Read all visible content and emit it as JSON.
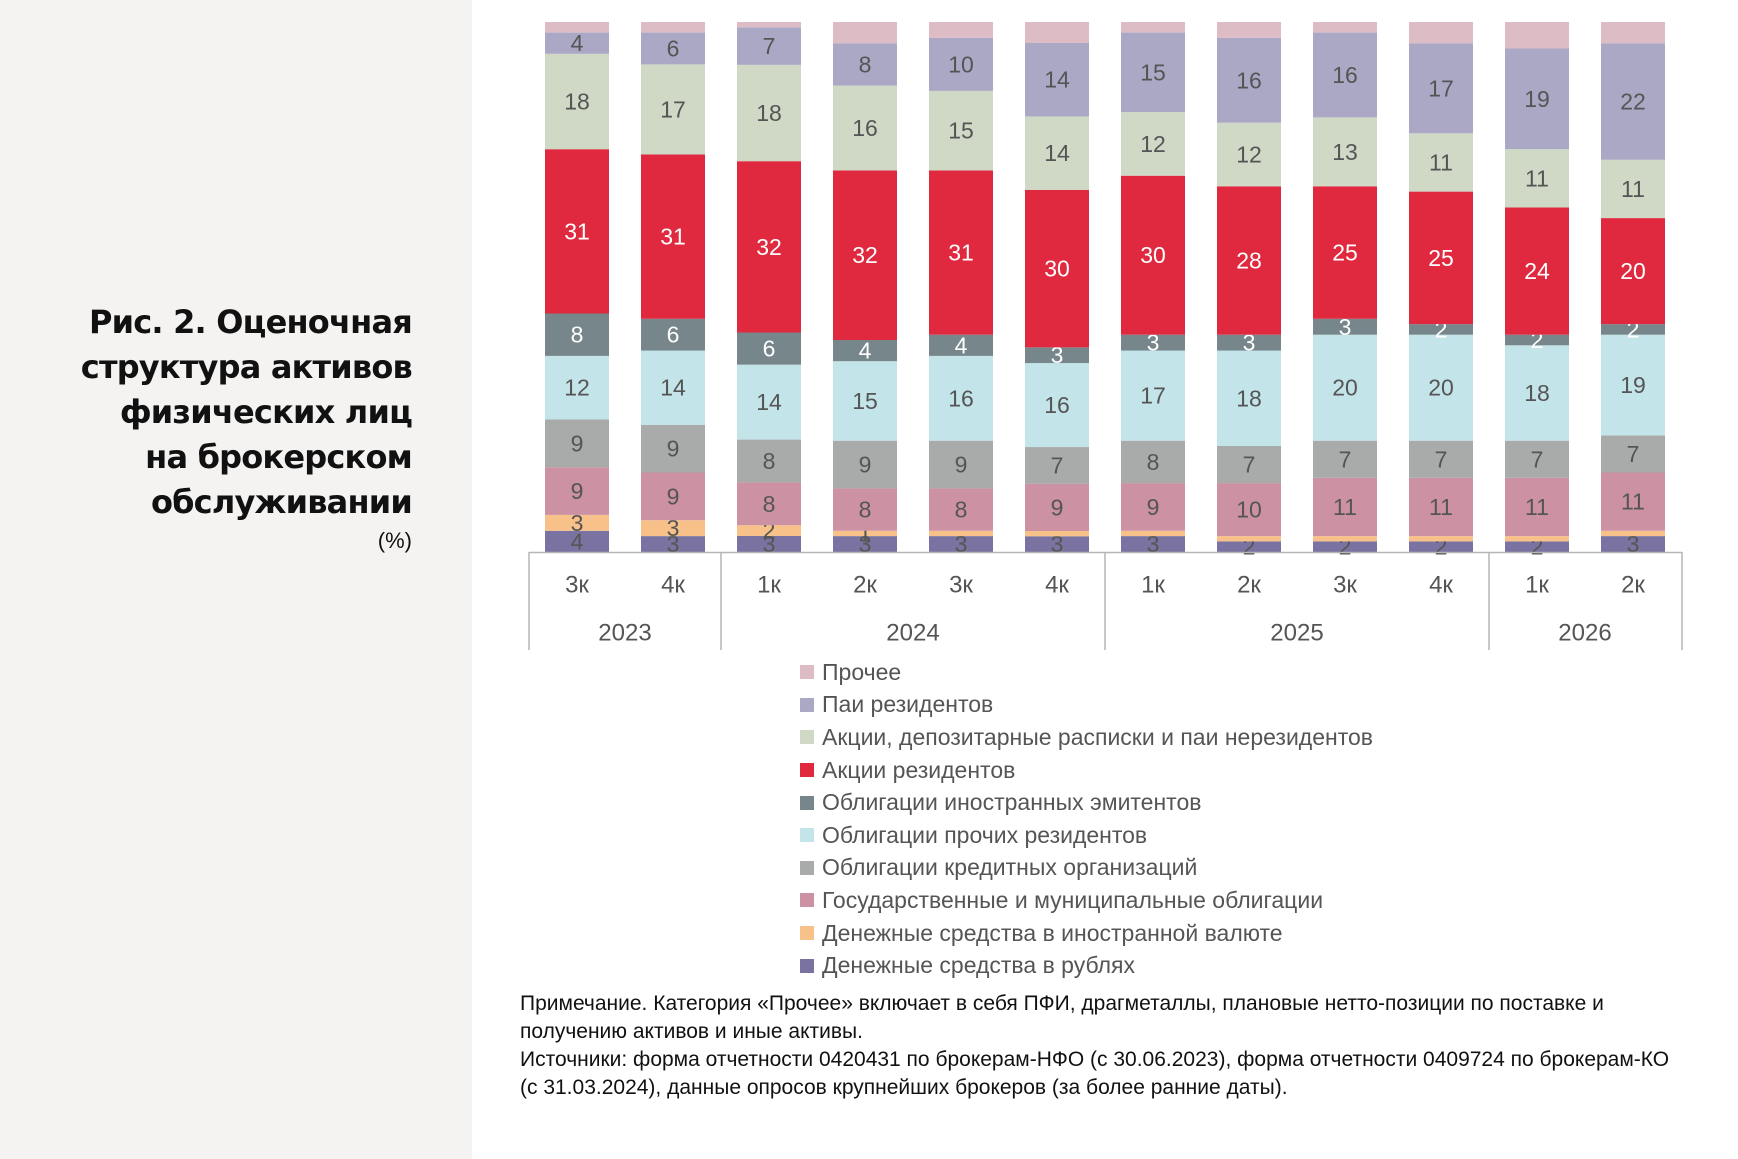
{
  "title": "Рис. 2. Оценочная\nструктура активов\nфизических лиц\nна брокерском\nобслуживании",
  "units": "(%)",
  "colors": {
    "other": "#ddbcc6",
    "resident_funds": "#aaa8c4",
    "foreign_stocks": "#cfd9c5",
    "resident_stocks": "#e0293f",
    "foreign_bonds": "#76868a",
    "other_resident_bonds": "#c3e4e9",
    "credit_org_bonds": "#a9abab",
    "gov_bonds": "#cc91a3",
    "cash_fx": "#f7c189",
    "cash_rub": "#7a73a1"
  },
  "chart_data": {
    "type": "bar",
    "stacked": true,
    "normalized_to": 100,
    "quarters": [
      "3к",
      "4к",
      "1к",
      "2к",
      "3к",
      "4к",
      "1к",
      "2к",
      "3к",
      "4к",
      "1к",
      "2к"
    ],
    "years": [
      {
        "label": "2023",
        "count": 2
      },
      {
        "label": "2024",
        "count": 4
      },
      {
        "label": "2025",
        "count": 4
      },
      {
        "label": "2026",
        "count": 2
      }
    ],
    "series": [
      {
        "key": "cash_rub",
        "name": "Денежные средства в рублях",
        "values": [
          4,
          3,
          3,
          3,
          3,
          3,
          3,
          2,
          2,
          2,
          2,
          3
        ],
        "labels": [
          "4",
          "3",
          "3",
          "3",
          "3",
          "3",
          "3",
          "2",
          "2",
          "2",
          "2",
          "3"
        ]
      },
      {
        "key": "cash_fx",
        "name": "Денежные средства в иностранной валюте",
        "values": [
          3,
          3,
          2,
          1,
          1,
          1,
          1,
          1,
          1,
          1,
          1,
          1
        ],
        "labels": [
          "3",
          "3",
          "2",
          "1",
          "",
          "",
          "",
          "",
          "",
          "",
          "",
          ""
        ]
      },
      {
        "key": "gov_bonds",
        "name": "Государственные и муниципальные облигации",
        "values": [
          9,
          9,
          8,
          8,
          8,
          9,
          9,
          10,
          11,
          11,
          11,
          11
        ],
        "labels": [
          "9",
          "9",
          "8",
          "8",
          "8",
          "9",
          "9",
          "10",
          "11",
          "11",
          "11",
          "11"
        ]
      },
      {
        "key": "credit_org_bonds",
        "name": "Облигации кредитных организаций",
        "values": [
          9,
          9,
          8,
          9,
          9,
          7,
          8,
          7,
          7,
          7,
          7,
          7
        ],
        "labels": [
          "9",
          "9",
          "8",
          "9",
          "9",
          "7",
          "8",
          "7",
          "7",
          "7",
          "7",
          "7"
        ]
      },
      {
        "key": "other_resident_bonds",
        "name": "Облигации прочих резидентов",
        "values": [
          12,
          14,
          14,
          15,
          16,
          16,
          17,
          18,
          20,
          20,
          18,
          19
        ],
        "labels": [
          "12",
          "14",
          "14",
          "15",
          "16",
          "16",
          "17",
          "18",
          "20",
          "20",
          "18",
          "19"
        ]
      },
      {
        "key": "foreign_bonds",
        "name": "Облигации иностранных эмитентов",
        "values": [
          8,
          6,
          6,
          4,
          4,
          3,
          3,
          3,
          3,
          2,
          2,
          2
        ],
        "labels": [
          "8",
          "6",
          "6",
          "4",
          "4",
          "3",
          "3",
          "3",
          "3",
          "2",
          "2",
          "2"
        ]
      },
      {
        "key": "resident_stocks",
        "name": "Акции резидентов",
        "values": [
          31,
          31,
          32,
          32,
          31,
          30,
          30,
          28,
          25,
          25,
          24,
          20
        ],
        "labels": [
          "31",
          "31",
          "32",
          "32",
          "31",
          "30",
          "30",
          "28",
          "25",
          "25",
          "24",
          "20"
        ]
      },
      {
        "key": "foreign_stocks",
        "name": "Акции, депозитарные расписки и паи нерезидентов",
        "values": [
          18,
          17,
          18,
          16,
          15,
          14,
          12,
          12,
          13,
          11,
          11,
          11
        ],
        "labels": [
          "18",
          "17",
          "18",
          "16",
          "15",
          "14",
          "12",
          "12",
          "13",
          "11",
          "11",
          "11"
        ]
      },
      {
        "key": "resident_funds",
        "name": "Паи резидентов",
        "values": [
          4,
          6,
          7,
          8,
          10,
          14,
          15,
          16,
          16,
          17,
          19,
          22
        ],
        "labels": [
          "4",
          "6",
          "7",
          "8",
          "10",
          "14",
          "15",
          "16",
          "16",
          "17",
          "19",
          "22"
        ]
      },
      {
        "key": "other",
        "name": "Прочее",
        "values": [
          2,
          2,
          1,
          4,
          3,
          4,
          2,
          3,
          2,
          4,
          5,
          4
        ],
        "labels": [
          "",
          "",
          "",
          "",
          "",
          "",
          "",
          "",
          "",
          "",
          "",
          ""
        ]
      }
    ],
    "legend_placement": "bottom",
    "grid": false
  },
  "legend": [
    {
      "key": "other",
      "label": "Прочее"
    },
    {
      "key": "resident_funds",
      "label": "Паи резидентов"
    },
    {
      "key": "foreign_stocks",
      "label": "Акции, депозитарные расписки и паи нерезидентов"
    },
    {
      "key": "resident_stocks",
      "label": "Акции резидентов"
    },
    {
      "key": "foreign_bonds",
      "label": "Облигации иностранных эмитентов"
    },
    {
      "key": "other_resident_bonds",
      "label": "Облигации прочих резидентов"
    },
    {
      "key": "credit_org_bonds",
      "label": "Облигации кредитных организаций"
    },
    {
      "key": "gov_bonds",
      "label": "Государственные и муниципальные облигации"
    },
    {
      "key": "cash_fx",
      "label": "Денежные средства в иностранной валюте"
    },
    {
      "key": "cash_rub",
      "label": "Денежные средства в рублях"
    }
  ],
  "notes": {
    "note": "Примечание. Категория «Прочее» включает в себя ПФИ, драгметаллы, плановые нетто-позиции по поставке и получению активов и иные активы.",
    "sources": "Источники: форма отчетности 0420431 по брокерам-НФО (с 30.06.2023), форма отчетности 0409724 по брокерам-КО (с 31.03.2024), данные опросов крупнейших брокеров (за более ранние даты)."
  }
}
